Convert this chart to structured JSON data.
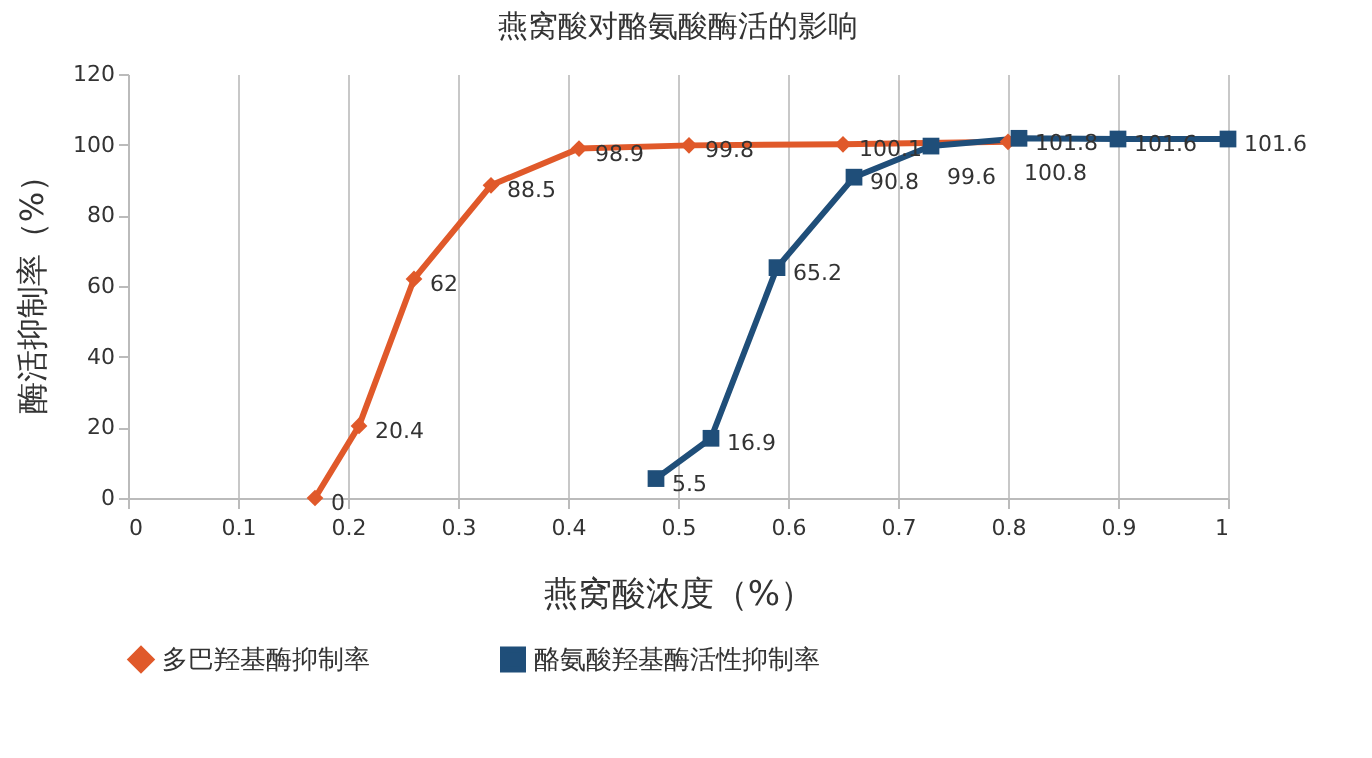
{
  "chart_data": {
    "type": "line",
    "title": "燕窝酸对酪氨酸酶活的影响",
    "xlabel": "燕窝酸浓度（%）",
    "ylabel": "酶活抑制率（%）",
    "xlim": [
      0,
      1
    ],
    "xticks": [
      0,
      0.1,
      0.2,
      0.3,
      0.4,
      0.5,
      0.6,
      0.7,
      0.8,
      0.9,
      1
    ],
    "ylim": [
      0,
      120
    ],
    "yticks": [
      0,
      20,
      40,
      60,
      80,
      100,
      120
    ],
    "grid": "x",
    "legend": "bottom",
    "data_labels": true,
    "series": [
      {
        "name": "多巴羟基酶抑制率",
        "color": "#e0592a",
        "marker": "diamond",
        "x": [
          0.17,
          0.21,
          0.26,
          0.33,
          0.41,
          0.51,
          0.65,
          0.8
        ],
        "values": [
          0,
          20.4,
          62,
          88.5,
          98.9,
          99.8,
          100.1,
          100.8
        ]
      },
      {
        "name": "酪氨酸羟基酶活性抑制率",
        "color": "#1f4e79",
        "marker": "square",
        "x": [
          0.48,
          0.53,
          0.59,
          0.66,
          0.73,
          0.81,
          0.9,
          1
        ],
        "values": [
          5.5,
          16.9,
          65.2,
          90.8,
          99.6,
          101.8,
          101.6,
          101.6
        ]
      }
    ]
  }
}
